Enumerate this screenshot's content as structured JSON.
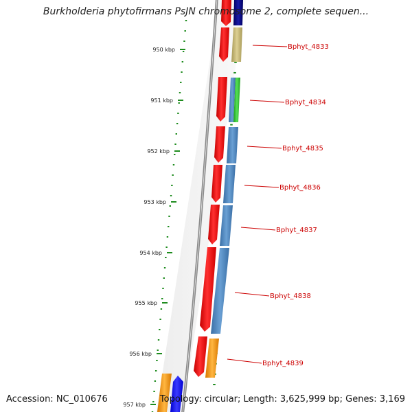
{
  "title": "Burkholderia phytofirmans PsJN chromosome 2, complete sequen...",
  "accession": "Accession: NC_010676",
  "topology": "Topology: circular; Length: 3,625,999 bp; Genes: 3,169",
  "ruler": {
    "unit": "kbp",
    "labels": [
      "950 kbp",
      "951 kbp",
      "952 kbp",
      "953 kbp",
      "954 kbp",
      "955 kbp",
      "956 kbp",
      "957 kbp"
    ]
  },
  "gene_labels": [
    "Bphyt_4833",
    "Bphyt_4834",
    "Bphyt_4835",
    "Bphyt_4836",
    "Bphyt_4837",
    "Bphyt_4838",
    "Bphyt_4839"
  ],
  "colors": {
    "backbone": "#8a8a8a",
    "ruler": "#1e8c1e",
    "label": "#cc0000",
    "strand_forward": "#ff1010",
    "cds_blue": "#4a86c0",
    "cds_khaki": "#c8bb78",
    "cds_green": "#33cc33",
    "cds_navy": "#0a0a8c",
    "cds_orange": "#ff9900",
    "cds_bright_blue": "#1a1aff"
  }
}
